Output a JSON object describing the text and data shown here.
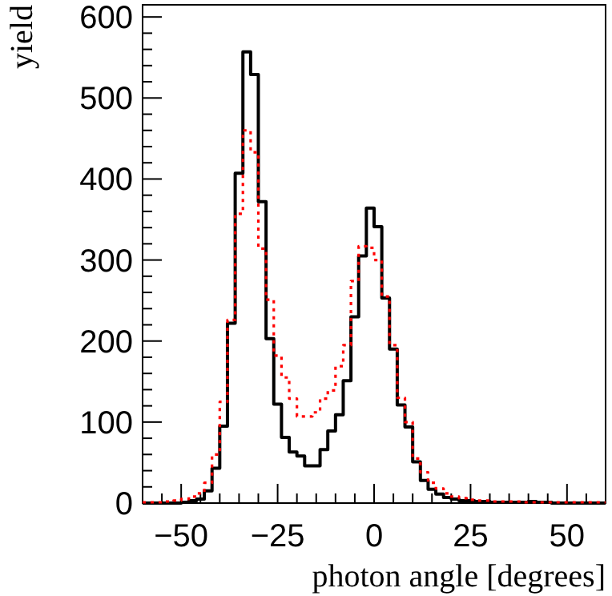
{
  "chart_data": {
    "type": "histogram",
    "xlabel": "photon angle [degrees]",
    "ylabel": "yield",
    "bins": [
      -60,
      -58,
      -56,
      -54,
      -52,
      -50,
      -48,
      -46,
      -44,
      -42,
      -40,
      -38,
      -36,
      -34,
      -32,
      -30,
      -28,
      -26,
      -24,
      -22,
      -20,
      -18,
      -16,
      -14,
      -12,
      -10,
      -8,
      -6,
      -4,
      -2,
      0,
      2,
      4,
      6,
      8,
      10,
      12,
      14,
      16,
      18,
      20,
      22,
      24,
      26,
      28,
      30,
      32,
      34,
      36,
      38,
      40,
      42,
      44,
      46,
      48,
      50,
      52,
      54,
      56,
      58,
      60
    ],
    "series": [
      {
        "color": "#000000",
        "line_style": "solid",
        "values": [
          0,
          0,
          0,
          0,
          0,
          1,
          3,
          5,
          15,
          43,
          95,
          222,
          407,
          557,
          529,
          372,
          203,
          122,
          81,
          63,
          58,
          46,
          46,
          66,
          89,
          109,
          151,
          230,
          305,
          364,
          341,
          253,
          190,
          121,
          94,
          51,
          28,
          17,
          11,
          7,
          5,
          3,
          3,
          2,
          2,
          1,
          1,
          1,
          1,
          1,
          2,
          1,
          1,
          0,
          0,
          0,
          0,
          0,
          0,
          0
        ]
      },
      {
        "color": "#ff0000",
        "line_style": "dotted",
        "values": [
          1,
          1,
          1,
          2,
          3,
          5,
          8,
          12,
          25,
          60,
          125,
          226,
          357,
          460,
          433,
          314,
          251,
          182,
          155,
          129,
          107,
          107,
          112,
          129,
          139,
          169,
          195,
          274,
          317,
          315,
          300,
          255,
          195,
          130,
          100,
          55,
          38,
          25,
          18,
          12,
          8,
          6,
          4,
          3,
          3,
          2,
          2,
          2,
          2,
          1,
          1,
          1,
          1,
          1,
          1,
          1,
          1,
          1,
          1,
          1
        ]
      }
    ],
    "xlim": [
      -60,
      60
    ],
    "ylim": [
      0,
      615
    ],
    "xticks": [
      {
        "value": -60,
        "label": null
      },
      {
        "value": -55,
        "label": null
      },
      {
        "value": -50,
        "label": "−50"
      },
      {
        "value": -45,
        "label": null
      },
      {
        "value": -40,
        "label": null
      },
      {
        "value": -35,
        "label": null
      },
      {
        "value": -30,
        "label": null
      },
      {
        "value": -25,
        "label": "−25"
      },
      {
        "value": -20,
        "label": null
      },
      {
        "value": -15,
        "label": null
      },
      {
        "value": -10,
        "label": null
      },
      {
        "value": -5,
        "label": null
      },
      0,
      {
        "value": 5,
        "label": null
      },
      {
        "value": 10,
        "label": null
      },
      {
        "value": 15,
        "label": null
      },
      {
        "value": 20,
        "label": null
      },
      25,
      {
        "value": 30,
        "label": null
      },
      {
        "value": 35,
        "label": null
      },
      {
        "value": 40,
        "label": null
      },
      {
        "value": 45,
        "label": null
      },
      50,
      {
        "value": 55,
        "label": null
      }
    ],
    "yticks": [
      0,
      {
        "value": 20,
        "label": null
      },
      {
        "value": 40,
        "label": null
      },
      {
        "value": 60,
        "label": null
      },
      {
        "value": 80,
        "label": null
      },
      100,
      {
        "value": 120,
        "label": null
      },
      {
        "value": 140,
        "label": null
      },
      {
        "value": 160,
        "label": null
      },
      {
        "value": 180,
        "label": null
      },
      200,
      {
        "value": 220,
        "label": null
      },
      {
        "value": 240,
        "label": null
      },
      {
        "value": 260,
        "label": null
      },
      {
        "value": 280,
        "label": null
      },
      300,
      {
        "value": 320,
        "label": null
      },
      {
        "value": 340,
        "label": null
      },
      {
        "value": 360,
        "label": null
      },
      {
        "value": 380,
        "label": null
      },
      400,
      {
        "value": 420,
        "label": null
      },
      {
        "value": 440,
        "label": null
      },
      {
        "value": 460,
        "label": null
      },
      {
        "value": 480,
        "label": null
      },
      500,
      {
        "value": 520,
        "label": null
      },
      {
        "value": 540,
        "label": null
      },
      {
        "value": 560,
        "label": null
      },
      {
        "value": 580,
        "label": null
      },
      600
    ]
  }
}
